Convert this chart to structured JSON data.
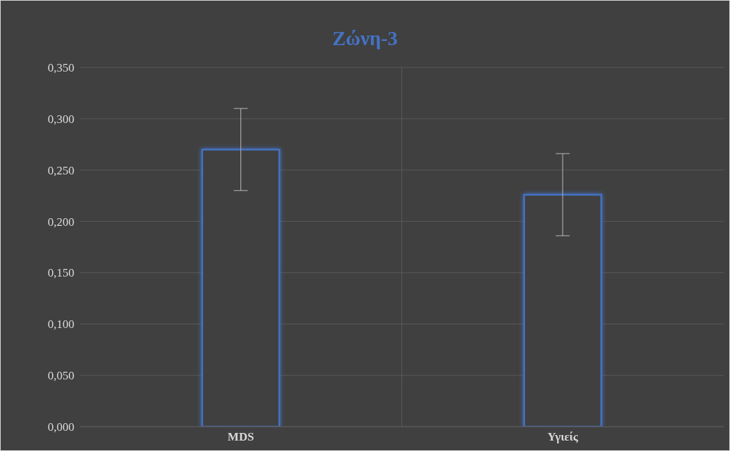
{
  "chart_data": {
    "type": "bar",
    "title": "Ζώνη-3",
    "categories": [
      "MDS",
      "Υγιείς"
    ],
    "values": [
      0.27,
      0.226
    ],
    "errors": [
      0.04,
      0.04
    ],
    "color": "#4472c4",
    "ylim": [
      0,
      0.35
    ],
    "yticks": [
      {
        "value": 0,
        "label": "0,000"
      },
      {
        "value": 0.05,
        "label": "0,050"
      },
      {
        "value": 0.1,
        "label": "0,100"
      },
      {
        "value": 0.15,
        "label": "0,150"
      },
      {
        "value": 0.2,
        "label": "0,200"
      },
      {
        "value": 0.25,
        "label": "0,250"
      },
      {
        "value": 0.3,
        "label": "0,300"
      },
      {
        "value": 0.35,
        "label": "0,350"
      }
    ],
    "grid": true
  }
}
